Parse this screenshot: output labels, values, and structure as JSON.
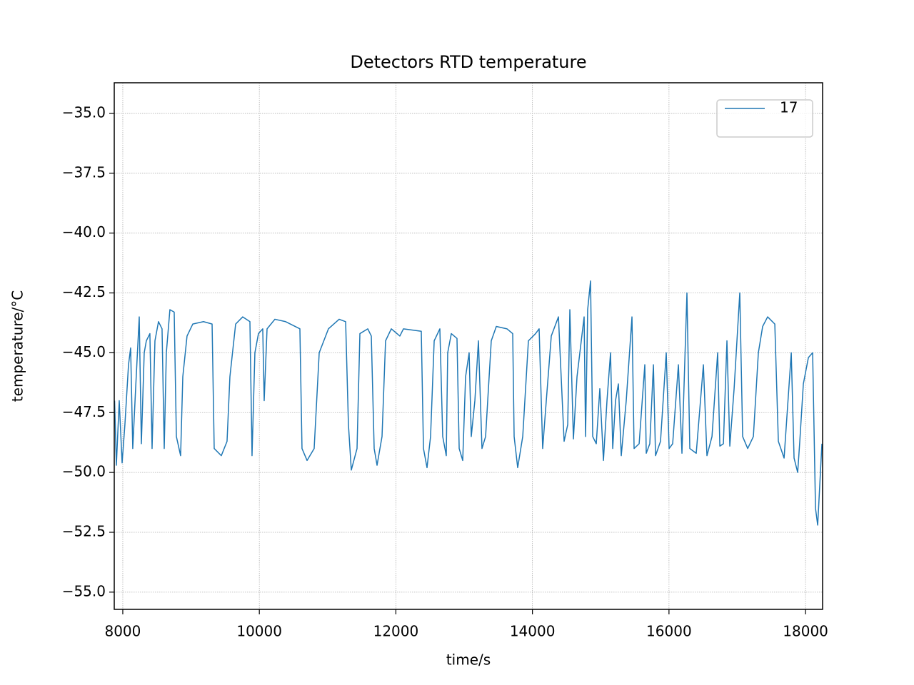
{
  "chart_data": {
    "type": "line",
    "title": "Detectors RTD temperature",
    "xlabel": "time/s",
    "ylabel": "temperature/°C",
    "x": [
      7880,
      7906,
      7948,
      7990,
      8031,
      8084,
      8115,
      8146,
      8188,
      8241,
      8272,
      8314,
      8345,
      8397,
      8429,
      8471,
      8523,
      8575,
      8607,
      8638,
      8690,
      8753,
      8785,
      8847,
      8879,
      8941,
      9025,
      9182,
      9308,
      9339,
      9443,
      9527,
      9569,
      9653,
      9757,
      9862,
      9893,
      9935,
      9987,
      10050,
      10071,
      10113,
      10228,
      10385,
      10594,
      10625,
      10699,
      10803,
      10877,
      11012,
      11169,
      11264,
      11305,
      11347,
      11431,
      11473,
      11588,
      11640,
      11682,
      11724,
      11797,
      11849,
      11933,
      12058,
      12111,
      12372,
      12404,
      12456,
      12508,
      12561,
      12644,
      12686,
      12738,
      12759,
      12812,
      12895,
      12927,
      12979,
      13021,
      13073,
      13104,
      13157,
      13209,
      13261,
      13314,
      13397,
      13471,
      13627,
      13711,
      13732,
      13784,
      13858,
      13941,
      14046,
      14098,
      14150,
      14203,
      14276,
      14381,
      14464,
      14517,
      14548,
      14600,
      14653,
      14757,
      14778,
      14809,
      14851,
      14883,
      14935,
      14987,
      15040,
      15092,
      15144,
      15176,
      15217,
      15259,
      15301,
      15374,
      15458,
      15489,
      15563,
      15646,
      15667,
      15719,
      15772,
      15803,
      15876,
      15960,
      16002,
      16054,
      16138,
      16190,
      16263,
      16305,
      16399,
      16504,
      16556,
      16630,
      16713,
      16745,
      16797,
      16849,
      16891,
      16954,
      17037,
      17079,
      17153,
      17236,
      17309,
      17372,
      17445,
      17550,
      17602,
      17686,
      17791,
      17832,
      17885,
      17916,
      17968,
      18042,
      18104,
      18146,
      18178,
      18209,
      18240
    ],
    "series": [
      {
        "name": "17",
        "color": "#1f77b4",
        "values": [
          -47,
          -49.7,
          -47,
          -49.6,
          -48,
          -45.5,
          -44.8,
          -49,
          -46.5,
          -43.5,
          -48.8,
          -45,
          -44.5,
          -44.2,
          -49,
          -44.5,
          -43.7,
          -44,
          -49,
          -45,
          -43.2,
          -43.3,
          -48.5,
          -49.3,
          -46,
          -44.3,
          -43.8,
          -43.7,
          -43.8,
          -49,
          -49.3,
          -48.7,
          -46,
          -43.8,
          -43.5,
          -43.7,
          -49.3,
          -45,
          -44.2,
          -44,
          -47,
          -44,
          -43.6,
          -43.7,
          -44,
          -49,
          -49.5,
          -49,
          -45,
          -44,
          -43.6,
          -43.7,
          -48,
          -49.9,
          -49,
          -44.2,
          -44,
          -44.3,
          -49,
          -49.7,
          -48.5,
          -44.5,
          -44,
          -44.3,
          -44,
          -44.1,
          -49,
          -49.8,
          -48.5,
          -44.5,
          -44,
          -48.5,
          -49.3,
          -45,
          -44.2,
          -44.4,
          -49,
          -49.5,
          -46,
          -45,
          -48.5,
          -47,
          -44.5,
          -49,
          -48.5,
          -44.5,
          -43.9,
          -44,
          -44.2,
          -48.5,
          -49.8,
          -48.5,
          -44.5,
          -44.2,
          -44,
          -49,
          -47,
          -44.3,
          -43.5,
          -48.7,
          -48,
          -43.2,
          -48.6,
          -46,
          -43.5,
          -48.5,
          -43.2,
          -42,
          -48.5,
          -48.8,
          -46.5,
          -49.5,
          -47,
          -45,
          -49,
          -47,
          -46.3,
          -49.3,
          -47,
          -43.5,
          -49,
          -48.8,
          -45.5,
          -49.2,
          -48.8,
          -45.5,
          -49.3,
          -48.7,
          -45,
          -49,
          -48.8,
          -45.5,
          -49.2,
          -42.5,
          -49,
          -49.2,
          -45.5,
          -49.3,
          -48.5,
          -45,
          -48.9,
          -48.8,
          -44.5,
          -48.9,
          -46.5,
          -42.5,
          -48.5,
          -49,
          -48.5,
          -45,
          -43.9,
          -43.5,
          -43.8,
          -48.7,
          -49.4,
          -45,
          -49.4,
          -50,
          -48.7,
          -46.3,
          -45.2,
          -45,
          -51.5,
          -52.2,
          -50.5,
          -48.8
        ]
      }
    ],
    "xlim": [
      7875,
      18250
    ],
    "ylim": [
      -55.72,
      -33.72
    ],
    "xticks": [
      8000,
      10000,
      12000,
      14000,
      16000,
      18000
    ],
    "yticks": [
      {
        "value": -55,
        "label": "−55.0"
      },
      {
        "value": -52.5,
        "label": "−52.5"
      },
      {
        "value": -50,
        "label": "−50.0"
      },
      {
        "value": -47.5,
        "label": "−47.5"
      },
      {
        "value": -45,
        "label": "−45.0"
      },
      {
        "value": -42.5,
        "label": "−42.5"
      },
      {
        "value": -40,
        "label": "−40.0"
      },
      {
        "value": -37.5,
        "label": "−37.5"
      },
      {
        "value": -35,
        "label": "−35.0"
      }
    ],
    "grid": true,
    "legend": "upper right"
  }
}
